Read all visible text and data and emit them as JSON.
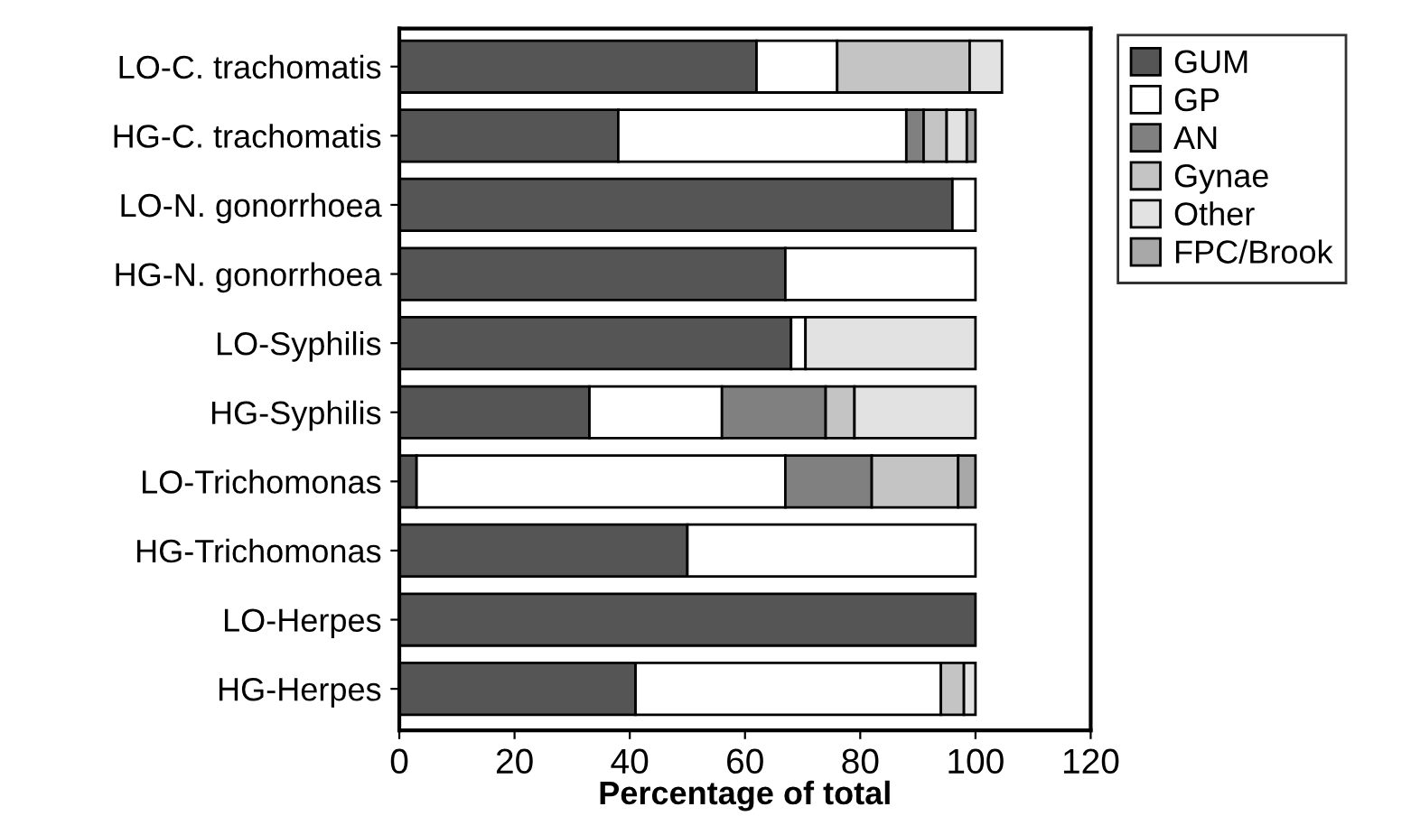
{
  "chart_data": {
    "type": "bar",
    "orientation": "horizontal",
    "stacked": true,
    "xlabel": "Percentage of total",
    "categories": [
      "LO-C. trachomatis",
      "HG-C. trachomatis",
      "LO-N. gonorrhoea",
      "HG-N. gonorrhoea",
      "LO-Syphilis",
      "HG-Syphilis",
      "LO-Trichomonas",
      "HG-Trichomonas",
      "LO-Herpes",
      "HG-Herpes"
    ],
    "series": [
      {
        "name": "GUM",
        "color": "#555555",
        "values": [
          62,
          38,
          96,
          67,
          68,
          33,
          3,
          50,
          100,
          41
        ]
      },
      {
        "name": "GP",
        "color": "#ffffff",
        "values": [
          14,
          50,
          4,
          33,
          2.5,
          23,
          64,
          50,
          0,
          53
        ]
      },
      {
        "name": "AN",
        "color": "#808080",
        "values": [
          0,
          3,
          0,
          0,
          0,
          18,
          15,
          0,
          0,
          0
        ]
      },
      {
        "name": "Gynae",
        "color": "#c4c4c4",
        "values": [
          23,
          4,
          0,
          0,
          0,
          5,
          15,
          0,
          0,
          4
        ]
      },
      {
        "name": "Other",
        "color": "#e2e2e2",
        "values": [
          5.6,
          3.5,
          0,
          0,
          29.5,
          21,
          0,
          0,
          0,
          2
        ]
      },
      {
        "name": "FPC/Brook",
        "color": "#a8a8a8",
        "values": [
          0,
          1.5,
          0,
          0,
          0,
          0,
          3,
          0,
          0,
          0
        ]
      }
    ],
    "xlim": [
      0,
      120
    ],
    "xticks": [
      0,
      20,
      40,
      60,
      80,
      100,
      120
    ],
    "grid": false,
    "legend": "right"
  }
}
